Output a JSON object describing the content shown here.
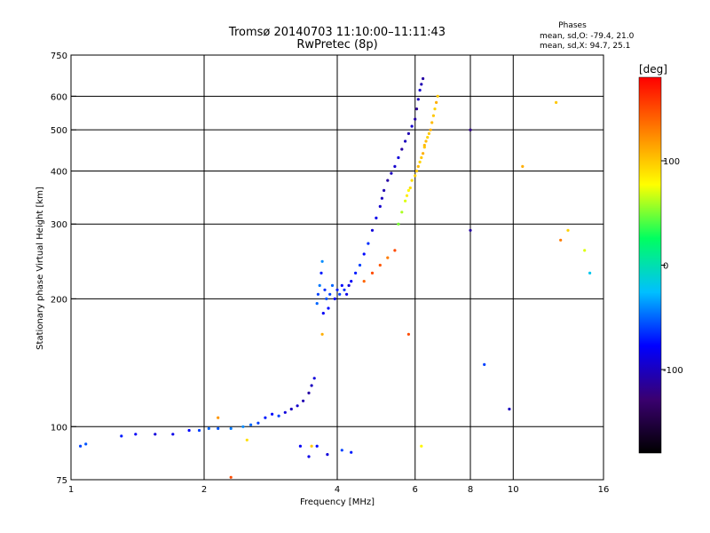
{
  "chart_data": {
    "type": "scatter",
    "title": "Tromsø 20140703 11:10:00–11:11:43",
    "subtitle": "RwPretec (8p)",
    "xlabel": "Frequency [MHz]",
    "ylabel": "Stationary phase Virtual Height [km]",
    "x_scale": "log",
    "y_scale": "log",
    "xlim": [
      1,
      16
    ],
    "ylim": [
      75,
      750
    ],
    "x_ticks": [
      1,
      2,
      4,
      6,
      8,
      10,
      16
    ],
    "x_tick_labels": [
      "1",
      "2",
      "4",
      "6",
      "8",
      "10",
      "16"
    ],
    "y_ticks": [
      75,
      100,
      200,
      300,
      400,
      500,
      600,
      750
    ],
    "y_tick_labels": [
      "75",
      "100",
      "200",
      "300",
      "400",
      "500",
      "600",
      "750"
    ],
    "grid": true,
    "phases_box": {
      "heading": "Phases",
      "line_o": "mean, sd,O: -79.4, 21.0",
      "line_x": "mean, sd,X:  94.7, 25.1"
    },
    "colorbar": {
      "label": "[deg]",
      "range": [
        -180,
        180
      ],
      "ticks": [
        100,
        0,
        -100
      ],
      "tick_labels": [
        "100",
        "0",
        "-100"
      ],
      "colors": [
        "#000000",
        "#3a0070",
        "#0000ff",
        "#00c0ff",
        "#00ff60",
        "#ffff00",
        "#ff8000",
        "#ff0000"
      ]
    },
    "series": [
      {
        "points": [
          [
            1.05,
            90
          ],
          [
            1.08,
            91
          ],
          [
            1.3,
            95
          ],
          [
            1.4,
            96
          ],
          [
            1.55,
            96
          ],
          [
            1.7,
            96
          ],
          [
            1.85,
            98
          ],
          [
            1.95,
            98
          ],
          [
            2.05,
            99
          ],
          [
            2.15,
            99
          ],
          [
            2.3,
            99
          ],
          [
            2.45,
            100
          ],
          [
            2.55,
            101
          ],
          [
            2.65,
            102
          ],
          [
            2.75,
            105
          ],
          [
            2.85,
            107
          ],
          [
            2.95,
            106
          ],
          [
            3.05,
            108
          ],
          [
            3.15,
            110
          ],
          [
            3.25,
            112
          ],
          [
            3.35,
            115
          ],
          [
            3.45,
            120
          ],
          [
            3.5,
            125
          ],
          [
            3.55,
            130
          ],
          [
            3.6,
            195
          ],
          [
            3.62,
            205
          ],
          [
            3.65,
            215
          ],
          [
            3.68,
            230
          ],
          [
            3.7,
            245
          ],
          [
            3.72,
            185
          ],
          [
            3.75,
            210
          ],
          [
            3.78,
            200
          ],
          [
            3.82,
            190
          ],
          [
            3.85,
            205
          ],
          [
            3.9,
            215
          ],
          [
            3.95,
            200
          ],
          [
            4.0,
            210
          ],
          [
            4.05,
            205
          ],
          [
            4.1,
            215
          ],
          [
            4.15,
            210
          ],
          [
            4.2,
            205
          ],
          [
            4.25,
            215
          ],
          [
            4.3,
            220
          ],
          [
            4.4,
            230
          ],
          [
            4.5,
            240
          ],
          [
            4.6,
            255
          ],
          [
            4.7,
            270
          ],
          [
            4.8,
            290
          ],
          [
            4.9,
            310
          ],
          [
            5.0,
            330
          ],
          [
            5.05,
            345
          ],
          [
            5.1,
            360
          ],
          [
            5.2,
            380
          ],
          [
            5.3,
            395
          ],
          [
            5.4,
            410
          ],
          [
            5.5,
            430
          ],
          [
            5.6,
            450
          ],
          [
            5.7,
            470
          ],
          [
            5.8,
            490
          ],
          [
            5.9,
            510
          ],
          [
            6.0,
            530
          ],
          [
            6.05,
            560
          ],
          [
            6.1,
            590
          ],
          [
            6.15,
            620
          ],
          [
            6.2,
            640
          ],
          [
            6.25,
            660
          ],
          [
            3.3,
            90
          ],
          [
            3.45,
            85
          ],
          [
            3.6,
            90
          ],
          [
            3.8,
            86
          ],
          [
            4.1,
            88
          ],
          [
            4.3,
            87
          ],
          [
            8.0,
            500
          ],
          [
            8.0,
            290
          ],
          [
            8.6,
            140
          ],
          [
            9.8,
            110
          ]
        ],
        "phases": [
          -60,
          -55,
          -70,
          -80,
          -90,
          -85,
          -75,
          -60,
          -50,
          -55,
          -45,
          -40,
          -50,
          -60,
          -70,
          -75,
          -60,
          -90,
          -100,
          -95,
          -105,
          -110,
          -100,
          -90,
          -50,
          -60,
          -45,
          -70,
          -40,
          -80,
          -65,
          -55,
          -75,
          -60,
          -50,
          -80,
          -70,
          -60,
          -75,
          -65,
          -85,
          -90,
          -80,
          -70,
          -60,
          -75,
          -65,
          -90,
          -85,
          -95,
          -100,
          -105,
          -110,
          -100,
          -95,
          -90,
          -110,
          -100,
          -105,
          -95,
          -110,
          -115,
          -100,
          -95,
          -105,
          -110,
          -80,
          -85,
          -75,
          -90,
          -60,
          -70,
          -120,
          -110,
          -60,
          -100
        ]
      },
      {
        "points": [
          [
            5.6,
            320
          ],
          [
            5.7,
            340
          ],
          [
            5.8,
            360
          ],
          [
            5.9,
            380
          ],
          [
            6.0,
            390
          ],
          [
            6.05,
            400
          ],
          [
            6.1,
            410
          ],
          [
            6.15,
            420
          ],
          [
            6.2,
            430
          ],
          [
            6.25,
            440
          ],
          [
            6.3,
            455
          ],
          [
            6.35,
            470
          ],
          [
            6.4,
            480
          ],
          [
            6.45,
            490
          ],
          [
            6.5,
            500
          ],
          [
            6.55,
            520
          ],
          [
            6.6,
            540
          ],
          [
            6.65,
            560
          ],
          [
            6.7,
            580
          ],
          [
            6.75,
            600
          ],
          [
            5.5,
            300
          ],
          [
            5.75,
            350
          ],
          [
            5.85,
            365
          ],
          [
            6.3,
            460
          ],
          [
            4.6,
            220
          ],
          [
            4.8,
            230
          ],
          [
            5.0,
            240
          ],
          [
            5.2,
            250
          ],
          [
            5.4,
            260
          ],
          [
            5.8,
            165
          ],
          [
            6.2,
            90
          ],
          [
            3.5,
            90
          ],
          [
            3.7,
            165
          ],
          [
            2.15,
            105
          ],
          [
            2.5,
            93
          ],
          [
            2.3,
            76
          ],
          [
            10.5,
            410
          ],
          [
            12.5,
            580
          ],
          [
            12.8,
            275
          ],
          [
            13.3,
            290
          ],
          [
            14.5,
            260
          ],
          [
            14.9,
            230
          ]
        ],
        "phases": [
          60,
          70,
          80,
          90,
          95,
          100,
          105,
          95,
          100,
          110,
          100,
          105,
          95,
          100,
          110,
          105,
          100,
          95,
          110,
          100,
          50,
          85,
          90,
          105,
          140,
          150,
          145,
          130,
          150,
          150,
          80,
          100,
          110,
          120,
          90,
          150,
          110,
          100,
          130,
          95,
          70,
          -20
        ]
      }
    ]
  }
}
